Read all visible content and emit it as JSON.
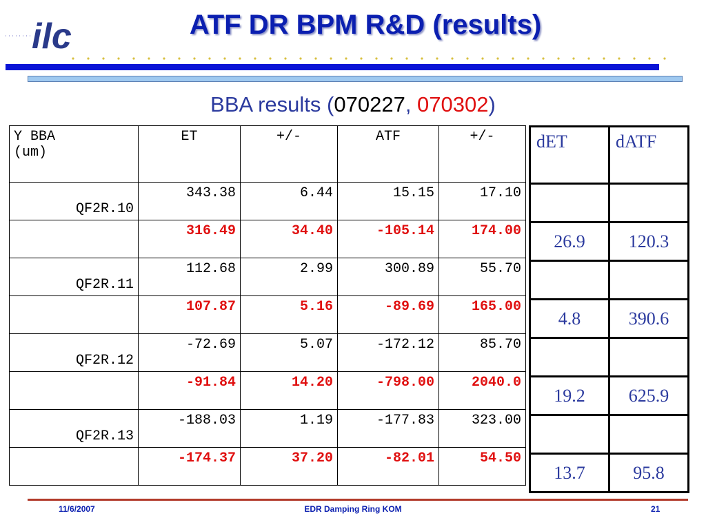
{
  "logo": {
    "text": "ilc"
  },
  "title": "ATF DR BPM R&D (results)",
  "subtitle": {
    "prefix": "BBA results (",
    "date1": "070227",
    "sep": ", ",
    "date2": "070302",
    "suffix": ")"
  },
  "main_table": {
    "headers": [
      "Y BBA\n(um)",
      "ET",
      "+/-",
      "ATF",
      "+/-"
    ],
    "rows": [
      {
        "label": "QF2R.10",
        "red": false,
        "values": [
          "343.38",
          "6.44",
          "15.15",
          "17.10"
        ]
      },
      {
        "label": "",
        "red": true,
        "values": [
          "316.49",
          "34.40",
          "-105.14",
          "174.00"
        ]
      },
      {
        "label": "QF2R.11",
        "red": false,
        "values": [
          "112.68",
          "2.99",
          "300.89",
          "55.70"
        ]
      },
      {
        "label": "",
        "red": true,
        "values": [
          "107.87",
          "5.16",
          "-89.69",
          "165.00"
        ]
      },
      {
        "label": "QF2R.12",
        "red": false,
        "values": [
          "-72.69",
          "5.07",
          "-172.12",
          "85.70"
        ]
      },
      {
        "label": "",
        "red": true,
        "values": [
          "-91.84",
          "14.20",
          "-798.00",
          "2040.0"
        ]
      },
      {
        "label": "QF2R.13",
        "red": false,
        "values": [
          "-188.03",
          "1.19",
          "-177.83",
          "323.00"
        ]
      },
      {
        "label": "",
        "red": true,
        "values": [
          "-174.37",
          "37.20",
          "-82.01",
          "54.50"
        ]
      }
    ]
  },
  "side_table": {
    "headers": [
      "dET",
      "dATF"
    ],
    "rows": [
      [
        "",
        ""
      ],
      [
        "26.9",
        "120.3"
      ],
      [
        "",
        ""
      ],
      [
        "4.8",
        "390.6"
      ],
      [
        "",
        ""
      ],
      [
        "19.2",
        "625.9"
      ],
      [
        "",
        ""
      ],
      [
        "13.7",
        "95.8"
      ]
    ]
  },
  "footer": {
    "date": "11/6/2007",
    "center": "EDR Damping Ring KOM",
    "page": "21"
  },
  "colors": {
    "title": "#0b1fb0",
    "red": "#e01010",
    "side_text": "#2b3a9e"
  }
}
